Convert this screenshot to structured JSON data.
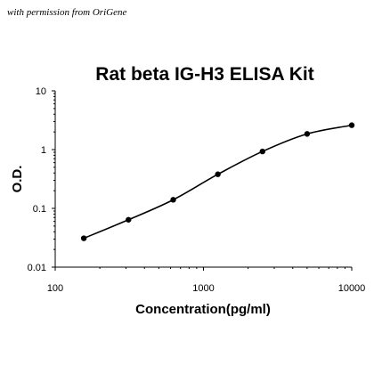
{
  "credit": "with permission from OriGene",
  "chart_data": {
    "type": "scatter",
    "title": "Rat beta IG-H3 ELISA Kit",
    "xlabel": "Concentration(pg/ml)",
    "ylabel": "O.D.",
    "xscale": "log",
    "yscale": "log",
    "xlim": [
      100,
      10000
    ],
    "ylim": [
      0.01,
      10
    ],
    "xticks": [
      100,
      1000,
      10000
    ],
    "xtick_labels": [
      "100",
      "1000",
      "10000"
    ],
    "yticks": [
      10,
      1,
      0.1,
      0.01
    ],
    "ytick_labels": [
      "10",
      "1",
      "0.1",
      "0.01"
    ],
    "grid": false,
    "series": [
      {
        "x": [
          156,
          312,
          625,
          1250,
          2500,
          5000,
          10000
        ],
        "y": [
          0.031,
          0.064,
          0.14,
          0.38,
          0.93,
          1.85,
          2.6
        ],
        "fit_curve": true
      }
    ]
  },
  "colors": {
    "line": "#000000",
    "marker": "#000000",
    "axis": "#000000"
  }
}
